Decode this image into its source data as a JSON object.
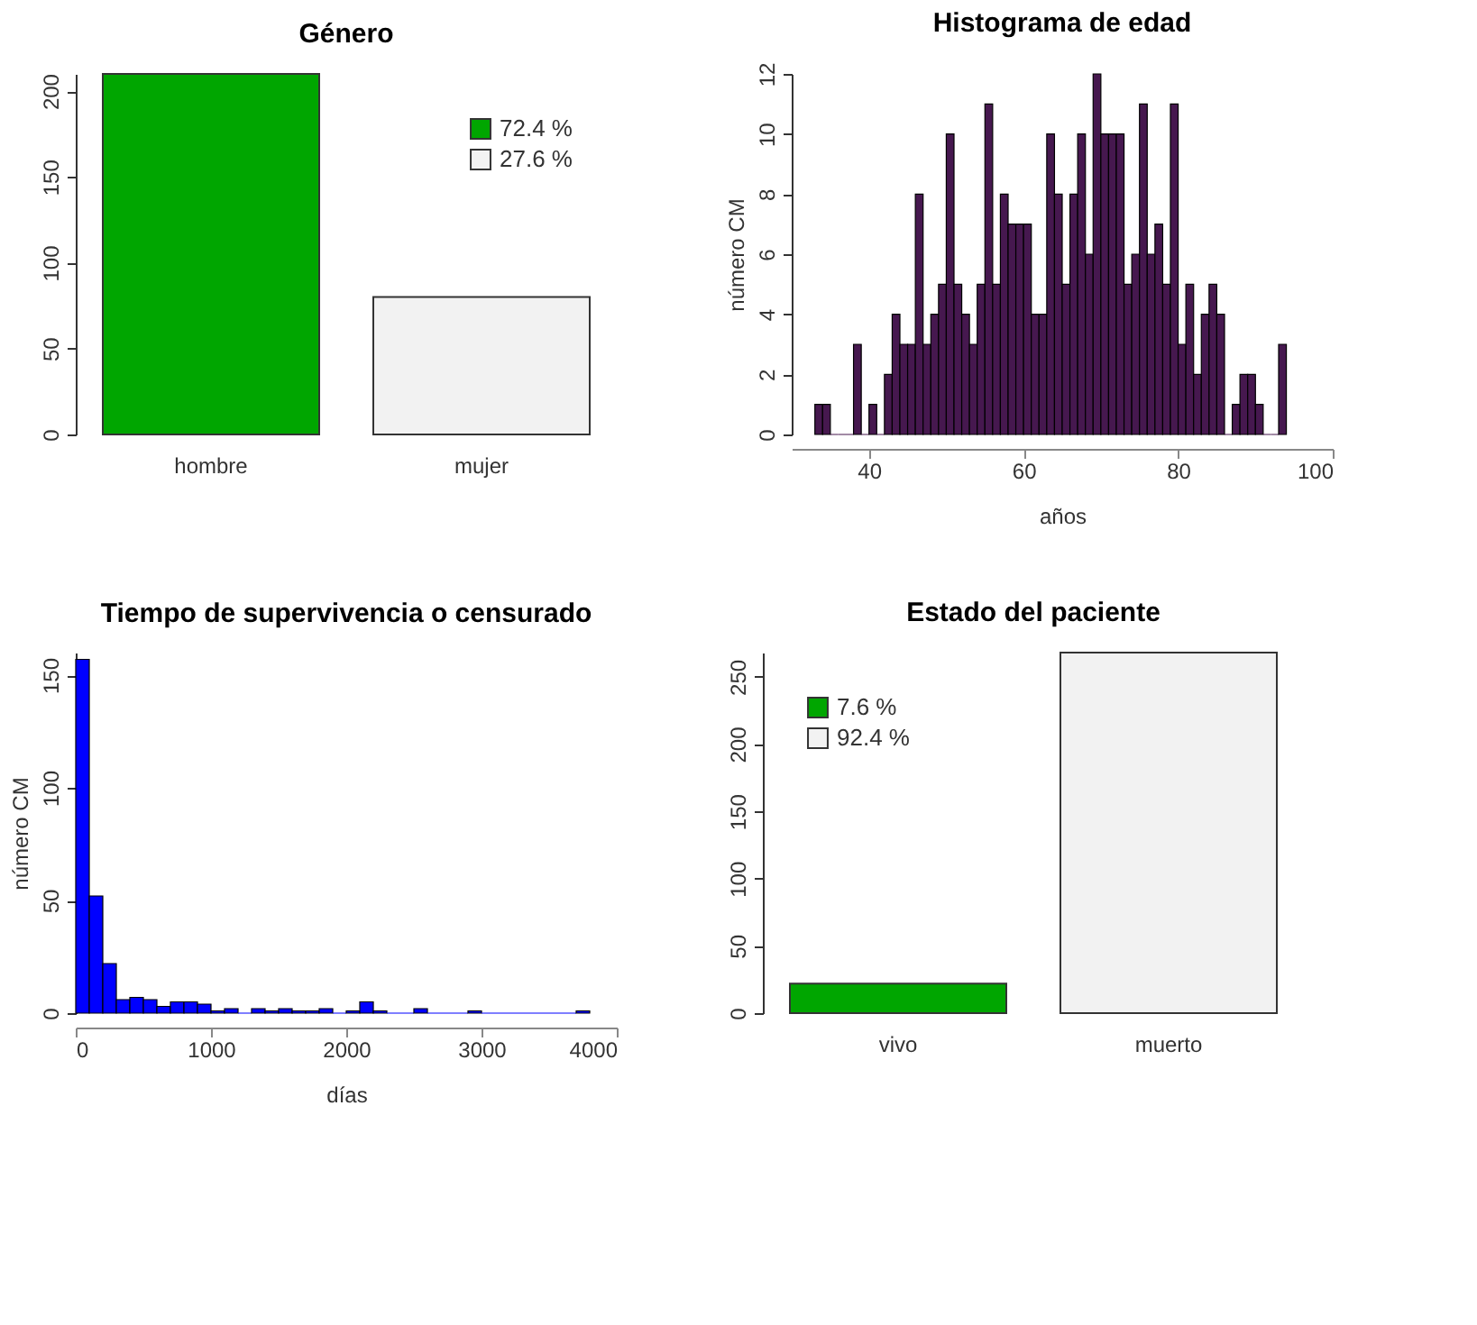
{
  "chart_data": [
    {
      "type": "bar",
      "title": "Género",
      "categories": [
        "hombre",
        "mujer"
      ],
      "series": [
        {
          "name": "72.4 %",
          "color": "#00a600",
          "values": [
            210,
            null
          ]
        },
        {
          "name": "27.6 %",
          "color": "#f2f2f2",
          "values": [
            null,
            80
          ]
        }
      ],
      "ylim": [
        0,
        210
      ],
      "yticks": [
        0,
        50,
        100,
        150,
        200
      ],
      "legend": "top right"
    },
    {
      "type": "histogram",
      "title": "Histograma de edad",
      "xlabel": "años",
      "ylabel": "número CM",
      "color": "#46184f",
      "bins": [
        33,
        34,
        35,
        36,
        37,
        38,
        39,
        40,
        41,
        42,
        43,
        44,
        45,
        46,
        47,
        48,
        49,
        50,
        51,
        52,
        53,
        54,
        55,
        56,
        57,
        58,
        59,
        60,
        61,
        62,
        63,
        64,
        65,
        66,
        67,
        68,
        69,
        70,
        71,
        72,
        73,
        74,
        75,
        76,
        77,
        78,
        79,
        80,
        81,
        82,
        83,
        84,
        85,
        86,
        87,
        88,
        89,
        90,
        91,
        92,
        93,
        94
      ],
      "values": [
        1,
        1,
        0,
        0,
        0,
        3,
        0,
        1,
        0,
        2,
        4,
        3,
        3,
        8,
        3,
        4,
        5,
        10,
        5,
        4,
        3,
        5,
        11,
        5,
        8,
        7,
        7,
        7,
        4,
        4,
        10,
        8,
        5,
        8,
        10,
        6,
        12,
        10,
        10,
        10,
        5,
        6,
        11,
        6,
        7,
        5,
        11,
        3,
        5,
        2,
        4,
        5,
        4,
        0,
        1,
        2,
        2,
        1,
        0,
        0,
        3
      ],
      "xlim": [
        30,
        100
      ],
      "xticks": [
        40,
        60,
        80,
        100
      ],
      "ylim": [
        0,
        12
      ],
      "yticks": [
        0,
        2,
        4,
        6,
        8,
        10,
        12
      ]
    },
    {
      "type": "histogram",
      "title": "Tiempo de supervivencia o censurado",
      "xlabel": "días",
      "ylabel": "número CM",
      "color": "#0000ff",
      "bins": [
        0,
        100,
        200,
        300,
        400,
        500,
        600,
        700,
        800,
        900,
        1000,
        1100,
        1200,
        1300,
        1400,
        1500,
        1600,
        1700,
        1800,
        1900,
        2000,
        2100,
        2200,
        2300,
        2400,
        2500,
        2600,
        2700,
        2800,
        2900,
        3000,
        3100,
        3200,
        3300,
        3400,
        3500,
        3600,
        3700,
        3800
      ],
      "values": [
        157,
        52,
        22,
        6,
        7,
        6,
        3,
        5,
        5,
        4,
        1,
        2,
        0,
        2,
        1,
        2,
        1,
        1,
        2,
        0,
        1,
        5,
        1,
        0,
        0,
        2,
        0,
        0,
        0,
        1,
        0,
        0,
        0,
        0,
        0,
        0,
        0,
        1
      ],
      "xlim": [
        0,
        4000
      ],
      "xticks": [
        0,
        1000,
        2000,
        3000,
        4000
      ],
      "ylim": [
        0,
        160
      ],
      "yticks": [
        0,
        50,
        100,
        150
      ]
    },
    {
      "type": "bar",
      "title": "Estado del paciente",
      "categories": [
        "vivo",
        "muerto"
      ],
      "series": [
        {
          "name": "7.6 %",
          "color": "#00a600",
          "values": [
            22,
            null
          ]
        },
        {
          "name": "92.4 %",
          "color": "#f2f2f2",
          "values": [
            null,
            268
          ]
        }
      ],
      "ylim": [
        0,
        268
      ],
      "yticks": [
        0,
        50,
        100,
        150,
        200,
        250
      ],
      "legend": "top left"
    }
  ]
}
